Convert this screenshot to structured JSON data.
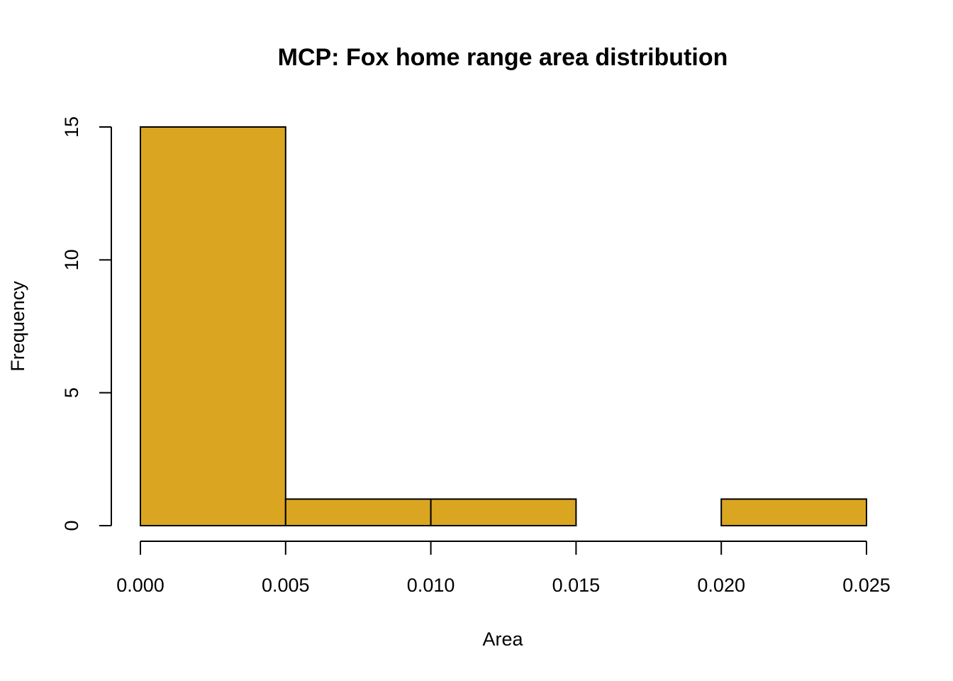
{
  "chart_data": {
    "type": "bar",
    "title": "MCP: Fox home range area distribution",
    "xlabel": "Area",
    "ylabel": "Frequency",
    "bins": [
      {
        "from": 0.0,
        "to": 0.005,
        "count": 15
      },
      {
        "from": 0.005,
        "to": 0.01,
        "count": 1
      },
      {
        "from": 0.01,
        "to": 0.015,
        "count": 1
      },
      {
        "from": 0.015,
        "to": 0.02,
        "count": 0
      },
      {
        "from": 0.02,
        "to": 0.025,
        "count": 1
      }
    ],
    "xlim": [
      0,
      0.025
    ],
    "ylim": [
      0,
      15
    ],
    "xticks": [
      "0.000",
      "0.005",
      "0.010",
      "0.015",
      "0.020",
      "0.025"
    ],
    "yticks": [
      "0",
      "5",
      "10",
      "15"
    ],
    "bar_color": "#DAA520",
    "grid": false
  }
}
